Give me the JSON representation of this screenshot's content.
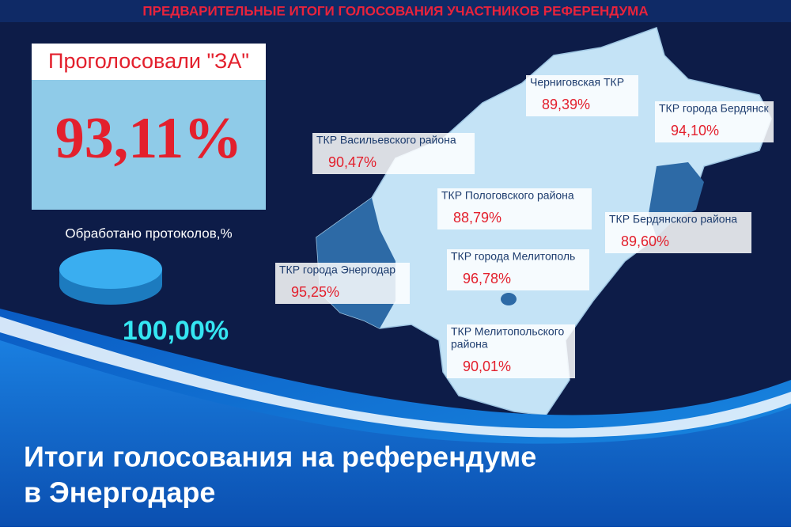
{
  "header": {
    "title": "ПРЕДВАРИТЕЛЬНЫЕ ИТОГИ ГОЛОСОВАНИЯ УЧАСТНИКОВ РЕФЕРЕНДУМА"
  },
  "summary": {
    "label": "Проголосовали \"ЗА\"",
    "value": "93,11%",
    "processed_label": "Обработано протоколов,%",
    "processed_value": "100,00%"
  },
  "regions": [
    {
      "label_lines": [
        "Черниговская ТКР"
      ],
      "value": "89,39%"
    },
    {
      "label_lines": [
        "ТКР города Бердянск"
      ],
      "value": "94,10%"
    },
    {
      "label_lines": [
        "ТКР Васильевского района"
      ],
      "value": "90,47%"
    },
    {
      "label_lines": [
        "ТКР Пологовского района"
      ],
      "value": "88,79%"
    },
    {
      "label_lines": [
        "ТКР Бердянского района"
      ],
      "value": "89,60%"
    },
    {
      "label_lines": [
        "ТКР города Мелитополь"
      ],
      "value": "96,78%"
    },
    {
      "label_lines": [
        "ТКР города Энергодар"
      ],
      "value": "95,25%"
    },
    {
      "label_lines": [
        "ТКР Мелитопольского",
        "района"
      ],
      "value": "90,01%"
    }
  ],
  "caption_lines": [
    "Итоги голосования на референдуме",
    "в Энергодаре"
  ]
}
